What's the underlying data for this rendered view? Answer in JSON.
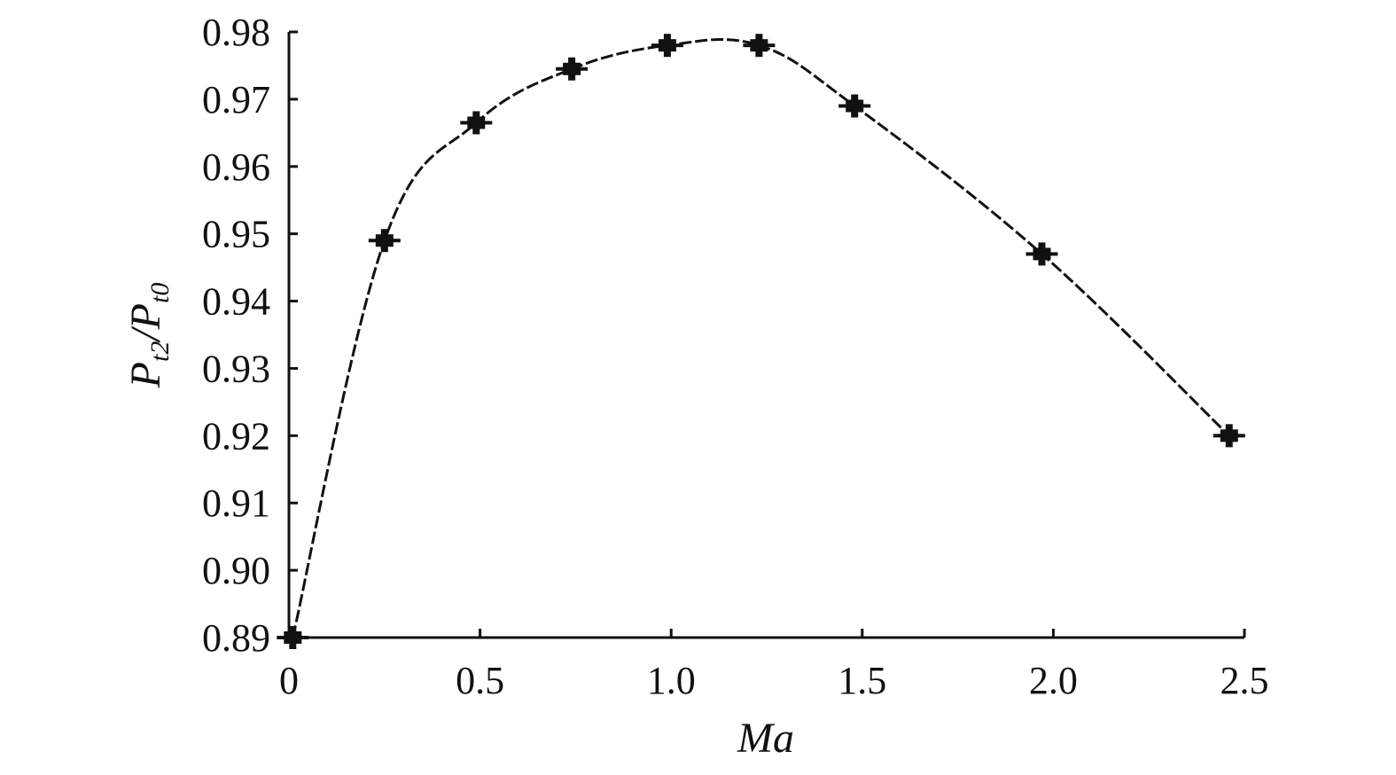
{
  "chart_data": {
    "type": "line",
    "title": "",
    "xlabel": "Ma",
    "ylabel": {
      "main1": "P",
      "sub1": "t2",
      "sep": "/",
      "main2": "P",
      "sub2": "t0"
    },
    "xlim": [
      0,
      2.5
    ],
    "ylim": [
      0.89,
      0.98
    ],
    "x_ticks": [
      0,
      0.5,
      1.0,
      1.5,
      2.0,
      2.5
    ],
    "x_tick_labels": [
      "0",
      "0.5",
      "1.0",
      "1.5",
      "2.0",
      "2.5"
    ],
    "y_ticks": [
      0.89,
      0.9,
      0.91,
      0.92,
      0.93,
      0.94,
      0.95,
      0.96,
      0.97,
      0.98
    ],
    "y_tick_labels": [
      "0.89",
      "0.90",
      "0.91",
      "0.92",
      "0.93",
      "0.94",
      "0.95",
      "0.96",
      "0.97",
      "0.98"
    ],
    "grid": false,
    "legend": "none",
    "line_color": "#111111",
    "marker": "star",
    "series": [
      {
        "x": [
          0.01,
          0.25,
          0.49,
          0.74,
          0.99,
          1.23,
          1.48,
          1.97,
          2.46
        ],
        "y": [
          0.89,
          0.949,
          0.9665,
          0.9745,
          0.978,
          0.978,
          0.969,
          0.947,
          0.92
        ]
      }
    ]
  }
}
